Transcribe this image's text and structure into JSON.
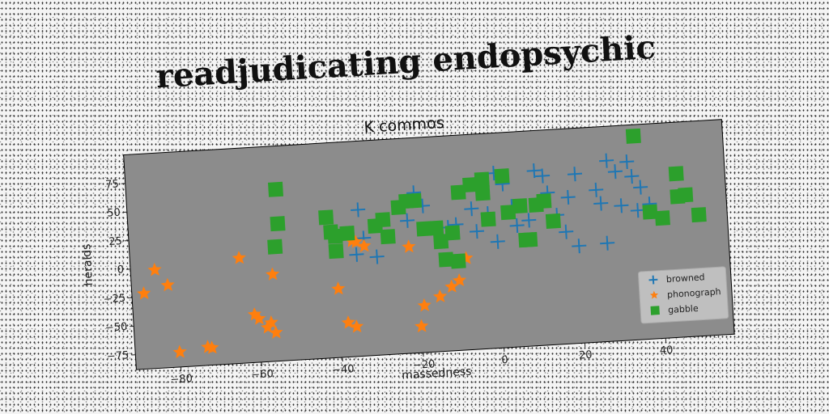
{
  "title": "readjudicating endopsychic",
  "chart_data": {
    "type": "scatter",
    "title": "K  commos",
    "xlabel": "massedness",
    "ylabel": "heralds",
    "xlim": [
      -91,
      57
    ],
    "ylim": [
      -88,
      100
    ],
    "xticks": [
      -80,
      -60,
      -40,
      -20,
      0,
      20,
      40
    ],
    "yticks": [
      -75,
      -50,
      -25,
      0,
      25,
      50,
      75
    ],
    "grid": false,
    "legend_position": "lower-right",
    "colors": {
      "plot_bg": "#8c8c8c",
      "browned": "#1f77b4",
      "phonograph": "#ff7f0e",
      "gabble": "#2ca02c"
    },
    "series": [
      {
        "name": "browned",
        "marker": "plus",
        "points": [
          [
            -34,
            40
          ],
          [
            -33,
            15
          ],
          [
            -35,
            1
          ],
          [
            -30,
            -2
          ],
          [
            -20,
            52
          ],
          [
            -18,
            40
          ],
          [
            -22,
            28
          ],
          [
            -10,
            22
          ],
          [
            -5,
            15
          ],
          [
            -2,
            30
          ],
          [
            0,
            65
          ],
          [
            2,
            55
          ],
          [
            4,
            35
          ],
          [
            5,
            18
          ],
          [
            8,
            22
          ],
          [
            10,
            65
          ],
          [
            12,
            60
          ],
          [
            13,
            45
          ],
          [
            15,
            25
          ],
          [
            17,
            10
          ],
          [
            18,
            40
          ],
          [
            20,
            -3
          ],
          [
            20,
            60
          ],
          [
            25,
            45
          ],
          [
            28,
            70
          ],
          [
            30,
            60
          ],
          [
            31,
            30
          ],
          [
            33,
            68
          ],
          [
            34,
            55
          ],
          [
            35,
            25
          ],
          [
            36,
            45
          ],
          [
            38,
            30
          ],
          [
            27,
            -2
          ],
          [
            26,
            33
          ],
          [
            0,
            5
          ],
          [
            -12,
            20
          ],
          [
            -6,
            35
          ]
        ]
      },
      {
        "name": "phonograph",
        "marker": "star",
        "points": [
          [
            -88,
            -22
          ],
          [
            -85,
            -2
          ],
          [
            -82,
            -16
          ],
          [
            -80,
            -75
          ],
          [
            -73,
            -72
          ],
          [
            -72,
            -73
          ],
          [
            -64,
            4
          ],
          [
            -61,
            -46
          ],
          [
            -60,
            -50
          ],
          [
            -58,
            -58
          ],
          [
            -57,
            -54
          ],
          [
            -56,
            -63
          ],
          [
            -56,
            -12
          ],
          [
            -40,
            -28
          ],
          [
            -38,
            -58
          ],
          [
            -36,
            -62
          ],
          [
            -36,
            13
          ],
          [
            -35,
            12
          ],
          [
            -33,
            8
          ],
          [
            -22,
            5
          ],
          [
            -20,
            -65
          ],
          [
            -19,
            -47
          ],
          [
            -15,
            -40
          ],
          [
            -12,
            -32
          ],
          [
            -10,
            -27
          ],
          [
            -8,
            -8
          ]
        ]
      },
      {
        "name": "gabble",
        "marker": "square",
        "points": [
          [
            -54,
            62
          ],
          [
            -54,
            32
          ],
          [
            -55,
            12
          ],
          [
            -42,
            35
          ],
          [
            -41,
            22
          ],
          [
            -40,
            18
          ],
          [
            -40,
            5
          ],
          [
            -37,
            20
          ],
          [
            -30,
            25
          ],
          [
            -28,
            30
          ],
          [
            -27,
            15
          ],
          [
            -24,
            40
          ],
          [
            -22,
            45
          ],
          [
            -20,
            45
          ],
          [
            -18,
            20
          ],
          [
            -15,
            20
          ],
          [
            -14,
            8
          ],
          [
            -13,
            -8
          ],
          [
            -11,
            15
          ],
          [
            -10,
            -10
          ],
          [
            -9,
            50
          ],
          [
            -6,
            56
          ],
          [
            -3,
            48
          ],
          [
            -3,
            60
          ],
          [
            -2,
            25
          ],
          [
            2,
            62
          ],
          [
            3,
            30
          ],
          [
            6,
            35
          ],
          [
            7,
            5
          ],
          [
            8,
            5
          ],
          [
            10,
            35
          ],
          [
            12,
            38
          ],
          [
            14,
            20
          ],
          [
            35,
            90
          ],
          [
            38,
            23
          ],
          [
            41,
            17
          ],
          [
            45,
            55
          ],
          [
            45,
            35
          ],
          [
            47,
            36
          ],
          [
            50,
            18
          ]
        ]
      }
    ]
  }
}
